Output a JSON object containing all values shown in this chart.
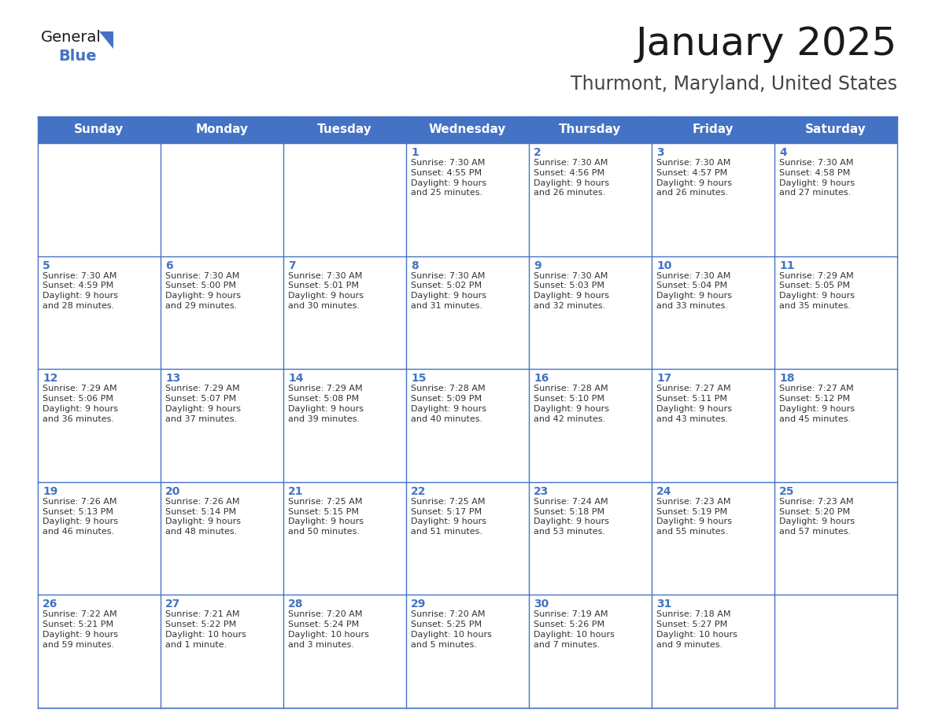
{
  "title": "January 2025",
  "subtitle": "Thurmont, Maryland, United States",
  "header_bg": "#4472C4",
  "header_text_color": "#FFFFFF",
  "cell_bg": "#FFFFFF",
  "border_color": "#4472C4",
  "day_names": [
    "Sunday",
    "Monday",
    "Tuesday",
    "Wednesday",
    "Thursday",
    "Friday",
    "Saturday"
  ],
  "title_color": "#1a1a1a",
  "subtitle_color": "#444444",
  "day_number_color": "#4472C4",
  "cell_text_color": "#333333",
  "weeks": [
    [
      {
        "day": "",
        "info": ""
      },
      {
        "day": "",
        "info": ""
      },
      {
        "day": "",
        "info": ""
      },
      {
        "day": "1",
        "info": "Sunrise: 7:30 AM\nSunset: 4:55 PM\nDaylight: 9 hours\nand 25 minutes."
      },
      {
        "day": "2",
        "info": "Sunrise: 7:30 AM\nSunset: 4:56 PM\nDaylight: 9 hours\nand 26 minutes."
      },
      {
        "day": "3",
        "info": "Sunrise: 7:30 AM\nSunset: 4:57 PM\nDaylight: 9 hours\nand 26 minutes."
      },
      {
        "day": "4",
        "info": "Sunrise: 7:30 AM\nSunset: 4:58 PM\nDaylight: 9 hours\nand 27 minutes."
      }
    ],
    [
      {
        "day": "5",
        "info": "Sunrise: 7:30 AM\nSunset: 4:59 PM\nDaylight: 9 hours\nand 28 minutes."
      },
      {
        "day": "6",
        "info": "Sunrise: 7:30 AM\nSunset: 5:00 PM\nDaylight: 9 hours\nand 29 minutes."
      },
      {
        "day": "7",
        "info": "Sunrise: 7:30 AM\nSunset: 5:01 PM\nDaylight: 9 hours\nand 30 minutes."
      },
      {
        "day": "8",
        "info": "Sunrise: 7:30 AM\nSunset: 5:02 PM\nDaylight: 9 hours\nand 31 minutes."
      },
      {
        "day": "9",
        "info": "Sunrise: 7:30 AM\nSunset: 5:03 PM\nDaylight: 9 hours\nand 32 minutes."
      },
      {
        "day": "10",
        "info": "Sunrise: 7:30 AM\nSunset: 5:04 PM\nDaylight: 9 hours\nand 33 minutes."
      },
      {
        "day": "11",
        "info": "Sunrise: 7:29 AM\nSunset: 5:05 PM\nDaylight: 9 hours\nand 35 minutes."
      }
    ],
    [
      {
        "day": "12",
        "info": "Sunrise: 7:29 AM\nSunset: 5:06 PM\nDaylight: 9 hours\nand 36 minutes."
      },
      {
        "day": "13",
        "info": "Sunrise: 7:29 AM\nSunset: 5:07 PM\nDaylight: 9 hours\nand 37 minutes."
      },
      {
        "day": "14",
        "info": "Sunrise: 7:29 AM\nSunset: 5:08 PM\nDaylight: 9 hours\nand 39 minutes."
      },
      {
        "day": "15",
        "info": "Sunrise: 7:28 AM\nSunset: 5:09 PM\nDaylight: 9 hours\nand 40 minutes."
      },
      {
        "day": "16",
        "info": "Sunrise: 7:28 AM\nSunset: 5:10 PM\nDaylight: 9 hours\nand 42 minutes."
      },
      {
        "day": "17",
        "info": "Sunrise: 7:27 AM\nSunset: 5:11 PM\nDaylight: 9 hours\nand 43 minutes."
      },
      {
        "day": "18",
        "info": "Sunrise: 7:27 AM\nSunset: 5:12 PM\nDaylight: 9 hours\nand 45 minutes."
      }
    ],
    [
      {
        "day": "19",
        "info": "Sunrise: 7:26 AM\nSunset: 5:13 PM\nDaylight: 9 hours\nand 46 minutes."
      },
      {
        "day": "20",
        "info": "Sunrise: 7:26 AM\nSunset: 5:14 PM\nDaylight: 9 hours\nand 48 minutes."
      },
      {
        "day": "21",
        "info": "Sunrise: 7:25 AM\nSunset: 5:15 PM\nDaylight: 9 hours\nand 50 minutes."
      },
      {
        "day": "22",
        "info": "Sunrise: 7:25 AM\nSunset: 5:17 PM\nDaylight: 9 hours\nand 51 minutes."
      },
      {
        "day": "23",
        "info": "Sunrise: 7:24 AM\nSunset: 5:18 PM\nDaylight: 9 hours\nand 53 minutes."
      },
      {
        "day": "24",
        "info": "Sunrise: 7:23 AM\nSunset: 5:19 PM\nDaylight: 9 hours\nand 55 minutes."
      },
      {
        "day": "25",
        "info": "Sunrise: 7:23 AM\nSunset: 5:20 PM\nDaylight: 9 hours\nand 57 minutes."
      }
    ],
    [
      {
        "day": "26",
        "info": "Sunrise: 7:22 AM\nSunset: 5:21 PM\nDaylight: 9 hours\nand 59 minutes."
      },
      {
        "day": "27",
        "info": "Sunrise: 7:21 AM\nSunset: 5:22 PM\nDaylight: 10 hours\nand 1 minute."
      },
      {
        "day": "28",
        "info": "Sunrise: 7:20 AM\nSunset: 5:24 PM\nDaylight: 10 hours\nand 3 minutes."
      },
      {
        "day": "29",
        "info": "Sunrise: 7:20 AM\nSunset: 5:25 PM\nDaylight: 10 hours\nand 5 minutes."
      },
      {
        "day": "30",
        "info": "Sunrise: 7:19 AM\nSunset: 5:26 PM\nDaylight: 10 hours\nand 7 minutes."
      },
      {
        "day": "31",
        "info": "Sunrise: 7:18 AM\nSunset: 5:27 PM\nDaylight: 10 hours\nand 9 minutes."
      },
      {
        "day": "",
        "info": ""
      }
    ]
  ],
  "figwidth": 11.88,
  "figheight": 9.18,
  "dpi": 100
}
